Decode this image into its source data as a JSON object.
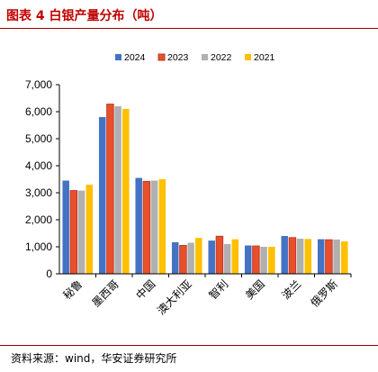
{
  "figure": {
    "title": "图表 4  白银产量分布（吨）",
    "source": "资料来源：wind，华安证券研究所"
  },
  "chart_data": {
    "type": "bar",
    "title": "",
    "xlabel": "",
    "ylabel": "",
    "categories": [
      "秘鲁",
      "墨西哥",
      "中国",
      "澳大利亚",
      "智利",
      "美国",
      "波兰",
      "俄罗斯"
    ],
    "series": [
      {
        "name": "2024",
        "color": "#4472c4",
        "values": [
          3450,
          5800,
          3550,
          1170,
          1230,
          1050,
          1400,
          1280
        ]
      },
      {
        "name": "2023",
        "color": "#e8502a",
        "values": [
          3080,
          6280,
          3420,
          1050,
          1390,
          1030,
          1340,
          1260
        ]
      },
      {
        "name": "2022",
        "color": "#b0b0b0",
        "values": [
          3080,
          6200,
          3450,
          1150,
          1100,
          1000,
          1300,
          1270
        ]
      },
      {
        "name": "2021",
        "color": "#ffc000",
        "values": [
          3300,
          6100,
          3500,
          1330,
          1280,
          1000,
          1290,
          1200
        ]
      }
    ],
    "yticks": [
      "0",
      "1,000",
      "2,000",
      "3,000",
      "4,000",
      "5,000",
      "6,000",
      "7,000"
    ],
    "ylim": [
      0,
      7000
    ],
    "grid": false,
    "legend": "top-center"
  }
}
